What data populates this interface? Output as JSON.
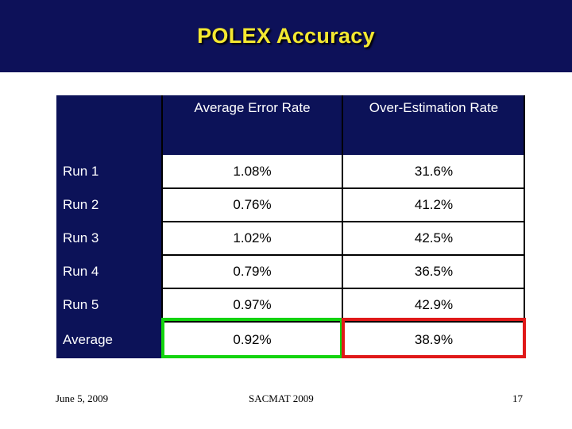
{
  "slide": {
    "title": "POLEX Accuracy"
  },
  "table": {
    "headers": [
      "",
      "Average Error Rate",
      "Over-Estimation Rate"
    ],
    "rows": [
      {
        "label": "Run 1",
        "avg_error": "1.08%",
        "over_est": "31.6%"
      },
      {
        "label": "Run 2",
        "avg_error": "0.76%",
        "over_est": "41.2%"
      },
      {
        "label": "Run 3",
        "avg_error": "1.02%",
        "over_est": "42.5%"
      },
      {
        "label": "Run 4",
        "avg_error": "0.79%",
        "over_est": "36.5%"
      },
      {
        "label": "Run 5",
        "avg_error": "0.97%",
        "over_est": "42.9%"
      },
      {
        "label": "Average",
        "avg_error": "0.92%",
        "over_est": "38.9%"
      }
    ]
  },
  "footer": {
    "date": "June 5, 2009",
    "venue": "SACMAT 2009",
    "page": "17"
  },
  "colors": {
    "header_bg": "#0c1258",
    "title_text": "#f4e830",
    "highlight_avg_error": "#13d40f",
    "highlight_over_est": "#e01919"
  }
}
